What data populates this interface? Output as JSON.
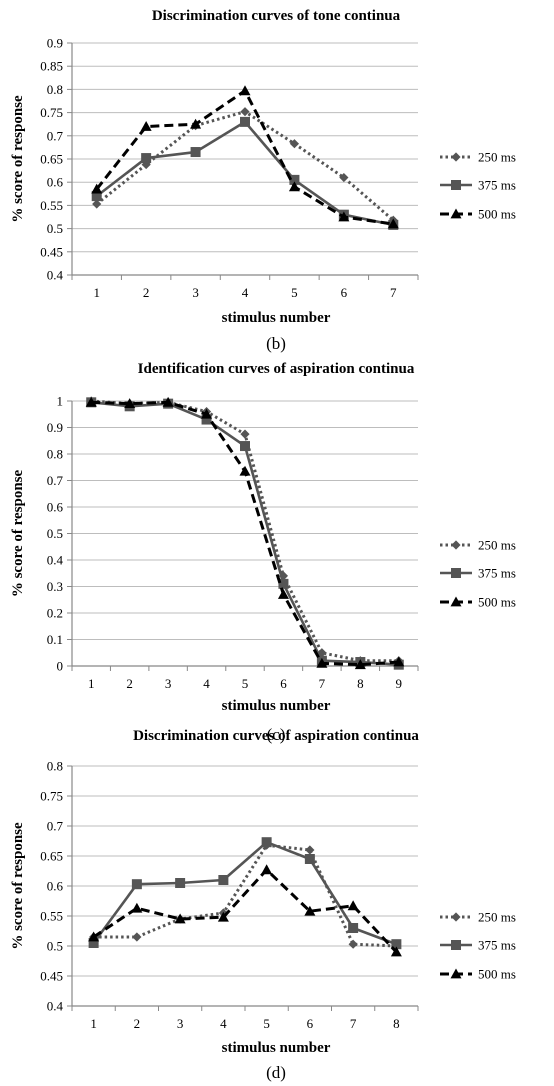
{
  "chart_data": [
    {
      "type": "line",
      "caption": "(b)",
      "title": "Discrimination curves of tone continua",
      "xlabel": "stimulus number",
      "ylabel": "% score of response",
      "categories": [
        "1",
        "2",
        "3",
        "4",
        "5",
        "6",
        "7"
      ],
      "ylim": [
        0.4,
        0.9
      ],
      "ytick_labels": [
        "0.4",
        "0.45",
        "0.5",
        "0.55",
        "0.6",
        "0.65",
        "0.7",
        "0.75",
        "0.8",
        "0.85",
        "0.9"
      ],
      "grid": true,
      "legend": "right",
      "series": [
        {
          "name": "250 ms",
          "values": [
            0.553,
            0.638,
            0.722,
            0.752,
            0.683,
            0.61,
            0.518
          ],
          "dash": "dotted",
          "marker": "diamond",
          "color": "#555555"
        },
        {
          "name": "375 ms",
          "values": [
            0.57,
            0.652,
            0.665,
            0.73,
            0.605,
            0.53,
            0.508
          ],
          "dash": "solid",
          "marker": "square",
          "color": "#555555"
        },
        {
          "name": "500 ms",
          "values": [
            0.585,
            0.72,
            0.725,
            0.797,
            0.59,
            0.525,
            0.51
          ],
          "dash": "dashed",
          "marker": "triangle",
          "color": "#000000"
        }
      ]
    },
    {
      "type": "line",
      "caption": "(c)",
      "title": "Identification curves of aspiration continua",
      "xlabel": "stimulus number",
      "ylabel": "% score of response",
      "categories": [
        "1",
        "2",
        "3",
        "4",
        "5",
        "6",
        "7",
        "8",
        "9"
      ],
      "ylim": [
        0,
        1
      ],
      "ytick_labels": [
        "0",
        "0.1",
        "0.2",
        "0.3",
        "0.4",
        "0.5",
        "0.6",
        "0.7",
        "0.8",
        "0.9",
        "1"
      ],
      "grid": true,
      "legend": "right",
      "series": [
        {
          "name": "250 ms",
          "values": [
            1.0,
            0.99,
            0.995,
            0.96,
            0.875,
            0.34,
            0.05,
            0.02,
            0.02
          ],
          "dash": "dotted",
          "marker": "diamond",
          "color": "#555555"
        },
        {
          "name": "375 ms",
          "values": [
            0.995,
            0.98,
            0.99,
            0.93,
            0.83,
            0.31,
            0.02,
            0.015,
            0.005
          ],
          "dash": "solid",
          "marker": "square",
          "color": "#555555"
        },
        {
          "name": "500 ms",
          "values": [
            0.995,
            0.99,
            0.995,
            0.95,
            0.735,
            0.27,
            0.01,
            0.005,
            0.015
          ],
          "dash": "dashed",
          "marker": "triangle",
          "color": "#000000"
        }
      ]
    },
    {
      "type": "line",
      "caption": "(d)",
      "title": "Discrimination curves of aspiration continua",
      "xlabel": "stimulus number",
      "ylabel": "% score of response",
      "categories": [
        "1",
        "2",
        "3",
        "4",
        "5",
        "6",
        "7",
        "8"
      ],
      "ylim": [
        0.4,
        0.8
      ],
      "ytick_labels": [
        "0.4",
        "0.45",
        "0.5",
        "0.55",
        "0.6",
        "0.65",
        "0.7",
        "0.75",
        "0.8"
      ],
      "grid": true,
      "legend": "right",
      "series": [
        {
          "name": "250 ms",
          "values": [
            0.515,
            0.515,
            0.545,
            0.555,
            0.668,
            0.66,
            0.503,
            0.5
          ],
          "dash": "dotted",
          "marker": "diamond",
          "color": "#555555"
        },
        {
          "name": "375 ms",
          "values": [
            0.505,
            0.603,
            0.605,
            0.61,
            0.673,
            0.645,
            0.53,
            0.503
          ],
          "dash": "solid",
          "marker": "square",
          "color": "#555555"
        },
        {
          "name": "500 ms",
          "values": [
            0.515,
            0.563,
            0.545,
            0.548,
            0.627,
            0.558,
            0.567,
            0.49
          ],
          "dash": "dashed",
          "marker": "triangle",
          "color": "#000000"
        }
      ]
    }
  ]
}
